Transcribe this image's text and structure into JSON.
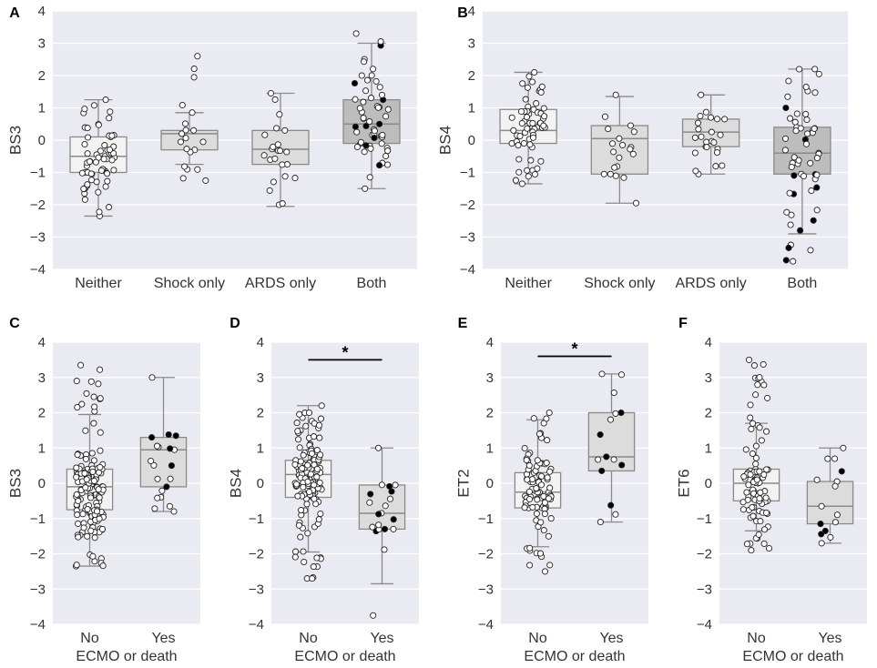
{
  "figure": {
    "colors": {
      "plot_bg": "#EAEAF2",
      "grid": "#FFFFFF",
      "whisker": "#8A8A8A",
      "box_light": "#F3F3F3",
      "box_mid": "#DCDCDC",
      "box_dark": "#BDBDBD",
      "point_open_fill": "#FFFFFF",
      "point_filled": "#000000",
      "point_stroke": "#222222",
      "sig_bar": "#000000"
    }
  },
  "chart_data": [
    {
      "id": "A",
      "type": "box-strip",
      "panel_label": "A",
      "ylabel": "BS3",
      "xlabel": "",
      "ylim": [
        -4,
        4
      ],
      "yticks": [
        -4,
        -3,
        -2,
        -1,
        0,
        1,
        2,
        3,
        4
      ],
      "categories": [
        "Neither",
        "Shock only",
        "ARDS only",
        "Both"
      ],
      "boxes": [
        {
          "q1": -1.0,
          "median": -0.5,
          "q3": 0.1,
          "whisker_low": -2.35,
          "whisker_high": 1.25,
          "shade": "light"
        },
        {
          "q1": -0.3,
          "median": 0.2,
          "q3": 0.3,
          "whisker_low": -0.75,
          "whisker_high": 0.85,
          "shade": "mid"
        },
        {
          "q1": -0.75,
          "median": -0.28,
          "q3": 0.3,
          "whisker_low": -2.05,
          "whisker_high": 1.45,
          "shade": "mid"
        },
        {
          "q1": -0.1,
          "median": 0.5,
          "q3": 1.25,
          "whisker_low": -1.5,
          "whisker_high": 3.0,
          "shade": "dark"
        }
      ],
      "points": [
        {
          "n": 62,
          "filled": 0,
          "min": -2.35,
          "max": 1.25,
          "q1": -1.0,
          "median": -0.5,
          "q3": 0.1
        },
        {
          "n": 20,
          "filled": 0,
          "min": -1.25,
          "max": 2.6,
          "q1": -0.3,
          "median": 0.2,
          "q3": 0.3
        },
        {
          "n": 24,
          "filled": 0,
          "min": -2.0,
          "max": 1.45,
          "q1": -0.75,
          "median": -0.28,
          "q3": 0.3
        },
        {
          "n": 56,
          "filled": 10,
          "min": -1.5,
          "max": 3.3,
          "q1": -0.1,
          "median": 0.5,
          "q3": 1.25
        }
      ],
      "significance": null
    },
    {
      "id": "B",
      "type": "box-strip",
      "panel_label": "B",
      "ylabel": "BS4",
      "xlabel": "",
      "ylim": [
        -4,
        4
      ],
      "yticks": [
        -4,
        -3,
        -2,
        -1,
        0,
        1,
        2,
        3,
        4
      ],
      "categories": [
        "Neither",
        "Shock only",
        "ARDS only",
        "Both"
      ],
      "boxes": [
        {
          "q1": -0.1,
          "median": 0.3,
          "q3": 0.95,
          "whisker_low": -1.35,
          "whisker_high": 2.1,
          "shade": "light"
        },
        {
          "q1": -1.05,
          "median": 0.05,
          "q3": 0.45,
          "whisker_low": -1.95,
          "whisker_high": 1.35,
          "shade": "mid"
        },
        {
          "q1": -0.2,
          "median": 0.25,
          "q3": 0.65,
          "whisker_low": -1.05,
          "whisker_high": 1.4,
          "shade": "mid"
        },
        {
          "q1": -1.05,
          "median": -0.4,
          "q3": 0.4,
          "whisker_low": -2.9,
          "whisker_high": 2.2,
          "shade": "dark"
        }
      ],
      "points": [
        {
          "n": 62,
          "filled": 0,
          "min": -1.35,
          "max": 2.1,
          "q1": -0.1,
          "median": 0.3,
          "q3": 0.95
        },
        {
          "n": 20,
          "filled": 0,
          "min": -1.95,
          "max": 1.4,
          "q1": -1.05,
          "median": 0.05,
          "q3": 0.45
        },
        {
          "n": 24,
          "filled": 0,
          "min": -1.05,
          "max": 1.4,
          "q1": -0.2,
          "median": 0.25,
          "q3": 0.65
        },
        {
          "n": 56,
          "filled": 10,
          "min": -3.75,
          "max": 2.2,
          "q1": -1.05,
          "median": -0.4,
          "q3": 0.4
        }
      ],
      "significance": null
    },
    {
      "id": "C",
      "type": "box-strip",
      "panel_label": "C",
      "ylabel": "BS3",
      "xlabel": "ECMO or death",
      "ylim": [
        -4,
        4
      ],
      "yticks": [
        -4,
        -3,
        -2,
        -1,
        0,
        1,
        2,
        3,
        4
      ],
      "categories": [
        "No",
        "Yes"
      ],
      "boxes": [
        {
          "q1": -0.75,
          "median": -0.1,
          "q3": 0.4,
          "whisker_low": -2.35,
          "whisker_high": 1.95,
          "shade": "light"
        },
        {
          "q1": -0.1,
          "median": 0.95,
          "q3": 1.3,
          "whisker_low": -0.8,
          "whisker_high": 3.0,
          "shade": "mid"
        }
      ],
      "points": [
        {
          "n": 150,
          "filled": 0,
          "min": -2.35,
          "max": 3.35,
          "q1": -0.75,
          "median": -0.1,
          "q3": 0.4
        },
        {
          "n": 20,
          "filled": 6,
          "min": -0.8,
          "max": 3.0,
          "q1": -0.1,
          "median": 0.95,
          "q3": 1.3
        }
      ],
      "significance": null
    },
    {
      "id": "D",
      "type": "box-strip",
      "panel_label": "D",
      "ylabel": "BS4",
      "xlabel": "ECMO or death",
      "ylim": [
        -4,
        4
      ],
      "yticks": [
        -4,
        -3,
        -2,
        -1,
        0,
        1,
        2,
        3,
        4
      ],
      "categories": [
        "No",
        "Yes"
      ],
      "boxes": [
        {
          "q1": -0.4,
          "median": 0.25,
          "q3": 0.65,
          "whisker_low": -1.95,
          "whisker_high": 2.2,
          "shade": "light"
        },
        {
          "q1": -1.3,
          "median": -0.85,
          "q3": -0.05,
          "whisker_low": -2.85,
          "whisker_high": 1.0,
          "shade": "mid"
        }
      ],
      "points": [
        {
          "n": 150,
          "filled": 0,
          "min": -2.7,
          "max": 2.2,
          "q1": -0.4,
          "median": 0.25,
          "q3": 0.65
        },
        {
          "n": 20,
          "filled": 7,
          "min": -3.75,
          "max": 1.0,
          "q1": -1.3,
          "median": -0.85,
          "q3": -0.05
        }
      ],
      "significance": {
        "from": 0,
        "to": 1,
        "y": 3.5,
        "label": "*"
      }
    },
    {
      "id": "E",
      "type": "box-strip",
      "panel_label": "E",
      "ylabel": "ET2",
      "xlabel": "ECMO or death",
      "ylim": [
        -4,
        4
      ],
      "yticks": [
        -4,
        -3,
        -2,
        -1,
        0,
        1,
        2,
        3,
        4
      ],
      "categories": [
        "No",
        "Yes"
      ],
      "boxes": [
        {
          "q1": -0.7,
          "median": -0.25,
          "q3": 0.3,
          "whisker_low": -1.8,
          "whisker_high": 1.8,
          "shade": "light"
        },
        {
          "q1": 0.35,
          "median": 0.75,
          "q3": 2.0,
          "whisker_low": -1.1,
          "whisker_high": 3.1,
          "shade": "mid"
        }
      ],
      "points": [
        {
          "n": 90,
          "filled": 0,
          "min": -2.5,
          "max": 2.0,
          "q1": -0.7,
          "median": -0.25,
          "q3": 0.3
        },
        {
          "n": 15,
          "filled": 6,
          "min": -1.1,
          "max": 3.1,
          "q1": 0.35,
          "median": 0.75,
          "q3": 2.0
        }
      ],
      "significance": {
        "from": 0,
        "to": 1,
        "y": 3.6,
        "label": "*"
      }
    },
    {
      "id": "F",
      "type": "box-strip",
      "panel_label": "F",
      "ylabel": "ET6",
      "xlabel": "ECMO or death",
      "ylim": [
        -4,
        4
      ],
      "yticks": [
        -4,
        -3,
        -2,
        -1,
        0,
        1,
        2,
        3,
        4
      ],
      "categories": [
        "No",
        "Yes"
      ],
      "boxes": [
        {
          "q1": -0.5,
          "median": 0.0,
          "q3": 0.4,
          "whisker_low": -1.35,
          "whisker_high": 1.7,
          "shade": "light"
        },
        {
          "q1": -1.15,
          "median": -0.65,
          "q3": 0.05,
          "whisker_low": -1.7,
          "whisker_high": 1.0,
          "shade": "mid"
        }
      ],
      "points": [
        {
          "n": 90,
          "filled": 0,
          "min": -1.9,
          "max": 3.5,
          "q1": -0.5,
          "median": 0.0,
          "q3": 0.4
        },
        {
          "n": 15,
          "filled": 4,
          "min": -1.7,
          "max": 1.0,
          "q1": -1.15,
          "median": -0.65,
          "q3": 0.05
        }
      ],
      "significance": null
    }
  ]
}
